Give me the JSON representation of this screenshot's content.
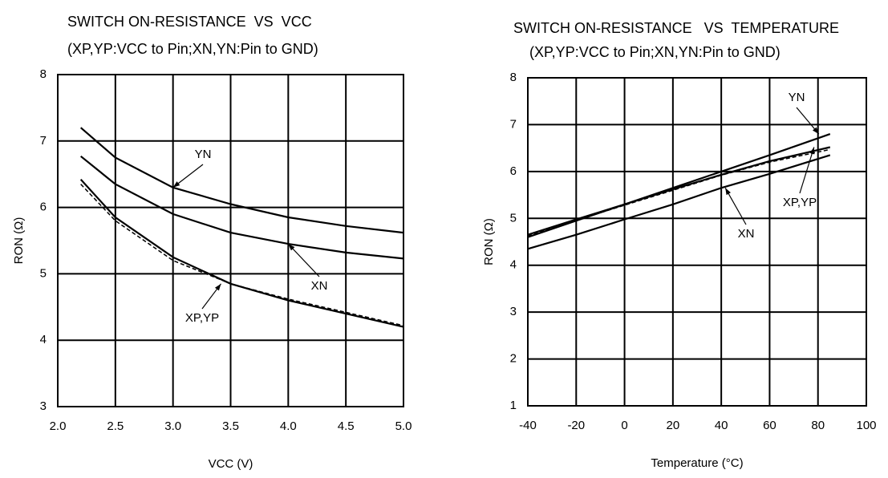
{
  "chart_data": [
    {
      "type": "line",
      "title": "SWITCH ON-RESISTANCE  VS  VCC",
      "subtitle": "(XP,YP:VCC to Pin;XN,YN:Pin to GND)",
      "x_label": "VCC (V)",
      "y_label": "RON (Ω)",
      "x": [
        2.2,
        2.5,
        3.0,
        3.5,
        4.0,
        4.5,
        5.0
      ],
      "series": [
        {
          "name": "YN",
          "color": "#000000",
          "values": [
            7.2,
            6.75,
            6.3,
            6.05,
            5.85,
            5.72,
            5.62
          ]
        },
        {
          "name": "XN",
          "color": "#000000",
          "values": [
            6.77,
            6.35,
            5.9,
            5.62,
            5.45,
            5.32,
            5.23
          ]
        },
        {
          "name": "XP,YP",
          "color": "#000000",
          "values": [
            6.42,
            5.85,
            5.25,
            4.85,
            4.6,
            4.4,
            4.2
          ]
        },
        {
          "color": "#000000",
          "dashed": true,
          "values": [
            6.35,
            5.8,
            5.2,
            4.85,
            4.62,
            4.42,
            4.22
          ]
        }
      ],
      "xlim": [
        2.0,
        5.0
      ],
      "xticks": [
        {
          "value": 2.0,
          "label": "2.0"
        },
        2.5,
        {
          "value": 3.0,
          "label": "3.0"
        },
        3.5,
        {
          "value": 4.0,
          "label": "4.0"
        },
        4.5,
        {
          "value": 5.0,
          "label": "5.0"
        }
      ],
      "ylim": [
        3,
        8
      ],
      "yticks": [
        3,
        4,
        5,
        6,
        7,
        8
      ],
      "grid": true
    },
    {
      "type": "line",
      "title": "SWITCH ON-RESISTANCE   VS  TEMPERATURE",
      "subtitle": "(XP,YP:VCC to Pin;XN,YN:Pin to GND)",
      "x_label": "Temperature (°C)",
      "y_label": "RON (Ω)",
      "x": [
        -40,
        -20,
        0,
        20,
        40,
        60,
        85
      ],
      "series": [
        {
          "name": "YN",
          "color": "#000000",
          "values": [
            4.6,
            4.95,
            5.3,
            5.65,
            6.0,
            6.35,
            6.8
          ]
        },
        {
          "name": "XN",
          "color": "#000000",
          "values": [
            4.35,
            4.65,
            4.98,
            5.3,
            5.65,
            5.95,
            6.35
          ]
        },
        {
          "name": "XP,YP",
          "color": "#000000",
          "values": [
            4.65,
            4.98,
            5.3,
            5.62,
            5.93,
            6.22,
            6.52
          ]
        },
        {
          "color": "#000000",
          "dashed": true,
          "values": [
            4.63,
            4.96,
            5.28,
            5.6,
            5.92,
            6.2,
            6.47
          ]
        }
      ],
      "xlim": [
        -40,
        100
      ],
      "xticks": [
        -40,
        -20,
        0,
        20,
        40,
        60,
        80,
        100
      ],
      "ylim": [
        1,
        8
      ],
      "yticks": [
        1,
        2,
        3,
        4,
        5,
        6,
        7,
        8
      ],
      "grid": true
    }
  ]
}
